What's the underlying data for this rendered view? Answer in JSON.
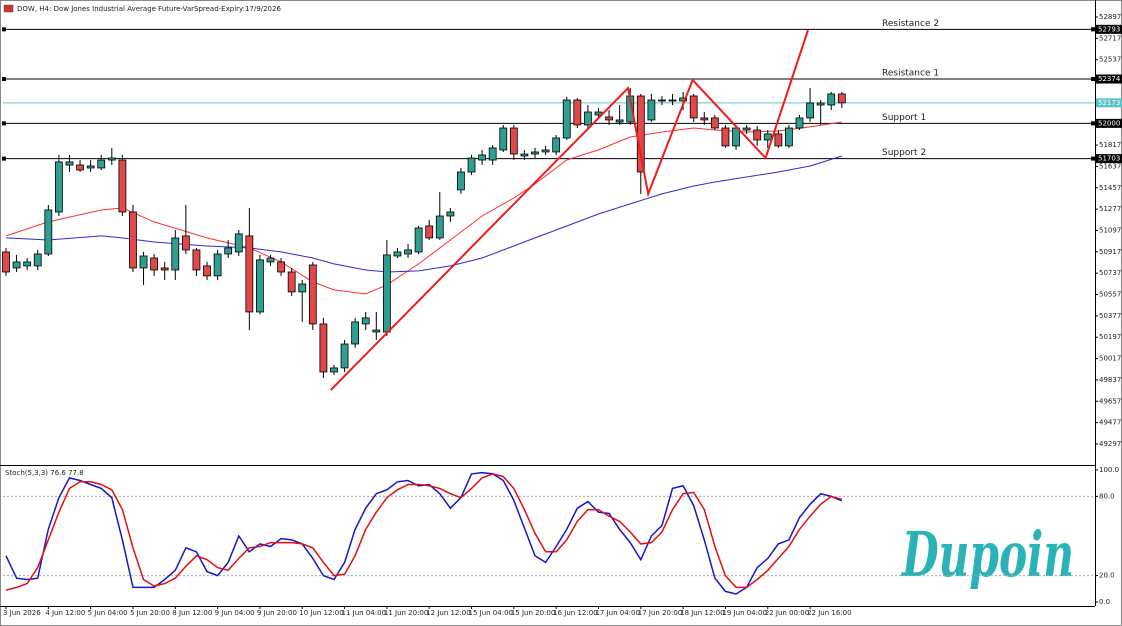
{
  "chart_data": [
    {
      "type": "candlestick",
      "title": "DOW, H4: Dow Jones Industrial Average Future-VarSpread-Expiry:17/9/2026",
      "categories": [
        "3 Jun 2026",
        null,
        null,
        null,
        "4 Jun 12:00",
        null,
        null,
        null,
        "5 Jun 04:00",
        null,
        null,
        null,
        "5 Jun 20:00",
        null,
        null,
        null,
        "8 Jun 12:00",
        null,
        null,
        null,
        "9 Jun 04:00",
        null,
        null,
        null,
        "9 Jun 20:00",
        null,
        null,
        null,
        "10 Jun 12:00",
        null,
        null,
        null,
        "11 Jun 04:00",
        null,
        null,
        null,
        "11 Jun 20:00",
        null,
        null,
        null,
        "12 Jun 12:00",
        null,
        null,
        null,
        "15 Jun 04:00",
        null,
        null,
        null,
        "15 Jun 20:00",
        null,
        null,
        null,
        "16 Jun 12:00",
        null,
        null,
        null,
        "17 Jun 04:00",
        null,
        null,
        null,
        "17 Jun 20:00",
        null,
        null,
        null,
        "18 Jun 12:00",
        null,
        null,
        null,
        "19 Jun 04:00",
        null,
        null,
        null,
        "22 Jun 00:00",
        null,
        null,
        null,
        "22 Jun 16:00",
        null,
        null,
        null
      ],
      "open": [
        50916,
        50781,
        50798,
        50798,
        50899,
        51253,
        51649,
        51649,
        51624,
        51624,
        51691,
        51691,
        51253,
        50781,
        50865,
        50781,
        50764,
        51051,
        50933,
        50798,
        50714,
        50899,
        50916,
        51051,
        50410,
        50832,
        50832,
        50747,
        50579,
        50806,
        50309,
        49904,
        49938,
        50140,
        50309,
        50241,
        50241,
        50882,
        50899,
        50916,
        51135,
        51034,
        51219,
        51439,
        51590,
        51691,
        51691,
        51776,
        51961,
        51725,
        51742,
        51759,
        51759,
        51877,
        52197,
        51987,
        52071,
        52054,
        52012,
        52012,
        52231,
        52029,
        52189,
        52197,
        52189,
        52231,
        52046,
        52046,
        51961,
        51810,
        51944,
        51944,
        51860,
        51911,
        51810,
        51961,
        52046,
        52155,
        52155,
        52248
      ],
      "high": [
        50950,
        50891,
        50865,
        50933,
        51312,
        51734,
        51734,
        51691,
        51691,
        51734,
        51793,
        51734,
        51312,
        50916,
        50899,
        50832,
        51101,
        51312,
        50950,
        50832,
        50933,
        51017,
        51101,
        51287,
        50891,
        50891,
        50865,
        50781,
        50680,
        50832,
        50360,
        49963,
        50174,
        50360,
        50410,
        50410,
        51017,
        50950,
        50983,
        51135,
        51186,
        51422,
        51287,
        51624,
        51734,
        51776,
        51818,
        51987,
        51987,
        51776,
        51793,
        51810,
        51902,
        52223,
        52214,
        52155,
        52130,
        52113,
        52155,
        52298,
        52248,
        52248,
        52231,
        52248,
        52265,
        52248,
        52096,
        52071,
        51987,
        51987,
        51987,
        51978,
        51944,
        51944,
        51987,
        52071,
        52298,
        52197,
        52265,
        52265
      ],
      "low": [
        50714,
        50747,
        50764,
        50764,
        50882,
        51219,
        51590,
        51590,
        51590,
        51607,
        51649,
        51219,
        50747,
        50638,
        50714,
        50680,
        50680,
        50899,
        50714,
        50680,
        50680,
        50865,
        50882,
        50258,
        50390,
        50798,
        50714,
        50545,
        50326,
        50258,
        49854,
        49879,
        49904,
        50107,
        50258,
        50174,
        50208,
        50865,
        50865,
        50899,
        51017,
        51017,
        51169,
        51405,
        51565,
        51649,
        51649,
        51759,
        51691,
        51691,
        51708,
        51734,
        51734,
        51860,
        51961,
        51961,
        52046,
        51987,
        51987,
        51987,
        51405,
        52012,
        52155,
        52155,
        52113,
        52012,
        51987,
        51944,
        51793,
        51776,
        51911,
        51810,
        51793,
        51793,
        51793,
        51944,
        52012,
        51987,
        52113,
        52130
      ],
      "close": [
        50747,
        50832,
        50832,
        50899,
        51270,
        51675,
        51675,
        51607,
        51641,
        51691,
        51708,
        51253,
        50781,
        50882,
        50764,
        50764,
        51034,
        50933,
        50764,
        50714,
        50899,
        50950,
        51068,
        50410,
        50849,
        50865,
        50747,
        50579,
        50646,
        50309,
        49904,
        49938,
        50140,
        50326,
        50360,
        50258,
        50891,
        50916,
        50933,
        51118,
        51034,
        51219,
        51253,
        51590,
        51708,
        51734,
        51793,
        51961,
        51742,
        51742,
        51759,
        51776,
        51877,
        52197,
        51987,
        52096,
        52096,
        52029,
        52029,
        52231,
        51590,
        52197,
        52197,
        52189,
        52214,
        52046,
        52029,
        51961,
        51810,
        51961,
        51961,
        51860,
        51911,
        51810,
        51961,
        52046,
        52172,
        52172,
        52248,
        52173
      ],
      "up_color": "#2e9e8f",
      "down_color": "#e0484a",
      "moving_averages": [
        {
          "color": "#ff3030",
          "x": [
            0,
            4,
            9,
            11,
            14,
            19,
            23,
            26,
            29,
            31,
            34,
            36,
            39,
            42,
            45,
            48,
            50,
            53,
            56,
            59,
            62,
            65,
            67,
            70,
            73,
            76,
            79
          ],
          "values": [
            51051,
            51169,
            51270,
            51287,
            51169,
            51034,
            50950,
            50832,
            50663,
            50596,
            50562,
            50638,
            50815,
            51017,
            51219,
            51371,
            51489,
            51691,
            51776,
            51885,
            51927,
            51961,
            51944,
            51927,
            51936,
            51970,
            52012
          ]
        },
        {
          "color": "#2b2bd6",
          "x": [
            0,
            4,
            9,
            11,
            14,
            19,
            23,
            26,
            29,
            31,
            34,
            36,
            39,
            42,
            45,
            48,
            50,
            53,
            56,
            59,
            62,
            65,
            67,
            70,
            73,
            76,
            79
          ],
          "values": [
            51034,
            51017,
            51051,
            51034,
            51000,
            50966,
            50950,
            50916,
            50865,
            50815,
            50764,
            50747,
            50756,
            50798,
            50865,
            50966,
            51034,
            51135,
            51236,
            51321,
            51405,
            51472,
            51506,
            51548,
            51590,
            51641,
            51725
          ]
        }
      ],
      "zigzag": {
        "color": "#ee1c1c",
        "x": [
          30.7,
          58.8,
          60.7,
          64.9,
          71.8,
          75.8
        ],
        "values": [
          49752,
          52298,
          51405,
          52366,
          51708,
          52787
        ]
      },
      "levels": [
        {
          "label": "Resistance 2",
          "value": 52793
        },
        {
          "label": "Resistance 1",
          "value": 52374
        },
        {
          "label": "Support 1",
          "value": 52000
        },
        {
          "label": "Support 2",
          "value": 51703
        }
      ],
      "current_price": {
        "value": 52173,
        "color": "#5cc3c9"
      },
      "ylim": [
        49128,
        53015
      ],
      "yticks": [
        52897,
        52717,
        52537,
        51817,
        51637,
        51457,
        51277,
        51097,
        50917,
        50737,
        50557,
        50377,
        50197,
        50017,
        49837,
        49657,
        49477,
        49297
      ]
    },
    {
      "type": "line",
      "title": "Stoch(5,3,3) 76.6 77.8",
      "series": [
        {
          "color": "#1515cc",
          "values": [
            35,
            18,
            17,
            18,
            55,
            79,
            94,
            92,
            89,
            86,
            79,
            47,
            11,
            11,
            11,
            17,
            24,
            41,
            38,
            23,
            20,
            30,
            50,
            38,
            44,
            42,
            48,
            47,
            44,
            33,
            20,
            17,
            30,
            55,
            71,
            82,
            85,
            91,
            92,
            88,
            89,
            82,
            71,
            79,
            97,
            98,
            97,
            92,
            77,
            56,
            35,
            30,
            42,
            55,
            71,
            76,
            68,
            67,
            55,
            45,
            32,
            50,
            58,
            86,
            88,
            73,
            47,
            18,
            8,
            6,
            11,
            26,
            33,
            44,
            47,
            64,
            74,
            82,
            80,
            76.6
          ]
        },
        {
          "color": "#e01010",
          "values": [
            9,
            11,
            14,
            26,
            47,
            68,
            86,
            91,
            91,
            89,
            85,
            70,
            41,
            17,
            12,
            14,
            18,
            27,
            35,
            32,
            26,
            24,
            33,
            41,
            42,
            45,
            45,
            45,
            44,
            41,
            30,
            20,
            21,
            35,
            55,
            68,
            79,
            85,
            89,
            89,
            88,
            86,
            82,
            79,
            86,
            94,
            97,
            95,
            86,
            70,
            52,
            38,
            38,
            47,
            61,
            70,
            70,
            65,
            61,
            53,
            44,
            45,
            53,
            70,
            82,
            83,
            70,
            42,
            20,
            11,
            11,
            17,
            24,
            33,
            42,
            55,
            65,
            74,
            80,
            77.8
          ]
        }
      ],
      "levels": [
        80,
        20
      ],
      "ylim": [
        -2.3,
        103
      ],
      "yticks": [
        {
          "value": 100,
          "label": "100.0"
        },
        {
          "value": 80,
          "label": "80.0"
        },
        {
          "value": 20,
          "label": "20.0"
        },
        {
          "value": 0,
          "label": "0.0"
        }
      ]
    }
  ],
  "watermark": "Dupoin"
}
